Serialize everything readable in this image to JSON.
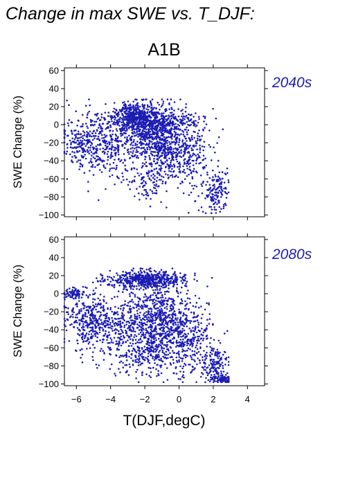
{
  "title": "Change in max SWE vs. T_DJF:",
  "subtitle": "A1B",
  "colors": {
    "points": "#1c1cb4",
    "axis": "#000000",
    "label": "#1c1cb4"
  },
  "chart_data": [
    {
      "type": "scatter",
      "label": "2040s",
      "xlabel": "",
      "ylabel": "SWE Change (%)",
      "xlim": [
        -6.7,
        5.0
      ],
      "ylim": [
        -102,
        63
      ],
      "xticks": [
        -6,
        -4,
        -2,
        0,
        2,
        4
      ],
      "yticks": [
        -100,
        -80,
        -60,
        -40,
        -20,
        0,
        20,
        40,
        60
      ],
      "point_count": 2400,
      "clusters": [
        {
          "weight": 0.3,
          "x_mean": -1.2,
          "x_sd": 0.9,
          "y_mean": -15,
          "y_sd": 18
        },
        {
          "weight": 0.18,
          "x_mean": -2.5,
          "x_sd": 0.6,
          "y_mean": 10,
          "y_sd": 8
        },
        {
          "weight": 0.14,
          "x_mean": -4.0,
          "x_sd": 1.0,
          "y_mean": -20,
          "y_sd": 18
        },
        {
          "weight": 0.1,
          "x_mean": 0.6,
          "x_sd": 0.8,
          "y_mean": -35,
          "y_sd": 22
        },
        {
          "weight": 0.08,
          "x_mean": -5.6,
          "x_sd": 0.6,
          "y_mean": -20,
          "y_sd": 15
        },
        {
          "weight": 0.1,
          "x_mean": -1.5,
          "x_sd": 1.5,
          "y_mean": 4,
          "y_sd": 6
        },
        {
          "weight": 0.06,
          "x_mean": 2.2,
          "x_sd": 0.4,
          "y_mean": -75,
          "y_sd": 12
        },
        {
          "weight": 0.04,
          "x_mean": -1.8,
          "x_sd": 0.8,
          "y_mean": -65,
          "y_sd": 10
        }
      ],
      "x_range": [
        -6.7,
        2.9
      ],
      "y_range": [
        -98,
        28
      ]
    },
    {
      "type": "scatter",
      "label": "2080s",
      "xlabel": "T(DJF,degC)",
      "ylabel": "SWE Change (%)",
      "xlim": [
        -6.7,
        5.0
      ],
      "ylim": [
        -102,
        63
      ],
      "xticks": [
        -6,
        -4,
        -2,
        0,
        2,
        4
      ],
      "yticks": [
        -100,
        -80,
        -60,
        -40,
        -20,
        0,
        20,
        40,
        60
      ],
      "point_count": 2600,
      "clusters": [
        {
          "weight": 0.28,
          "x_mean": -1.3,
          "x_sd": 0.9,
          "y_mean": -30,
          "y_sd": 22
        },
        {
          "weight": 0.2,
          "x_mean": -1.8,
          "x_sd": 1.1,
          "y_mean": 15,
          "y_sd": 5
        },
        {
          "weight": 0.14,
          "x_mean": -4.0,
          "x_sd": 1.0,
          "y_mean": -35,
          "y_sd": 18
        },
        {
          "weight": 0.12,
          "x_mean": 0.6,
          "x_sd": 0.8,
          "y_mean": -50,
          "y_sd": 22
        },
        {
          "weight": 0.08,
          "x_mean": -5.5,
          "x_sd": 0.6,
          "y_mean": -30,
          "y_sd": 15
        },
        {
          "weight": 0.06,
          "x_mean": 2.2,
          "x_sd": 0.4,
          "y_mean": -80,
          "y_sd": 10
        },
        {
          "weight": 0.06,
          "x_mean": -2.0,
          "x_sd": 0.9,
          "y_mean": -70,
          "y_sd": 10
        },
        {
          "weight": 0.03,
          "x_mean": 2.6,
          "x_sd": 0.3,
          "y_mean": -95,
          "y_sd": 2
        },
        {
          "weight": 0.03,
          "x_mean": -6.2,
          "x_sd": 0.3,
          "y_mean": 0,
          "y_sd": 3
        }
      ],
      "x_range": [
        -6.7,
        2.9
      ],
      "y_range": [
        -98,
        28
      ]
    }
  ]
}
